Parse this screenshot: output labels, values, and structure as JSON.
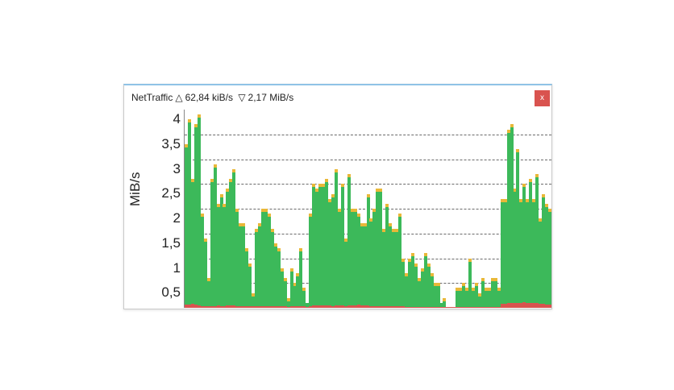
{
  "window": {
    "app_name": "NetTraffic",
    "upload_icon": "△",
    "upload_rate": "62,84 kiB/s",
    "download_icon": "▽",
    "download_rate": "2,17 MiB/s",
    "close_label": "x"
  },
  "chart_data": {
    "type": "bar",
    "title": "NetTraffic △ 62,84 kiB/s ▽ 2,17 MiB/s",
    "xlabel": "",
    "ylabel": "MiB/s",
    "ylim": [
      0,
      4
    ],
    "yticks": [
      "4",
      "3,5",
      "3",
      "2,5",
      "2",
      "1,5",
      "1",
      "0,5"
    ],
    "grid": true,
    "legend": "none",
    "colors": {
      "download": "#3cb95a",
      "upload": "#d9534f",
      "peak_cap": "#e9b838",
      "grid": "#6a6a6a"
    },
    "series": [
      {
        "name": "download",
        "values": [
          3.3,
          3.8,
          2.6,
          3.7,
          3.9,
          1.9,
          1.4,
          0.6,
          2.6,
          2.9,
          2.1,
          2.3,
          2.1,
          2.4,
          2.6,
          2.8,
          2.0,
          1.7,
          1.7,
          1.2,
          0.9,
          0.3,
          1.6,
          1.7,
          2.0,
          2.0,
          1.9,
          1.6,
          1.3,
          1.2,
          0.8,
          0.6,
          0.2,
          0.8,
          0.5,
          0.7,
          1.2,
          0.4,
          0.1,
          1.9,
          2.5,
          2.4,
          2.5,
          2.5,
          2.6,
          2.2,
          2.3,
          2.8,
          2.0,
          2.5,
          1.4,
          2.7,
          2.0,
          2.0,
          1.9,
          1.7,
          1.7,
          2.3,
          1.8,
          2.0,
          2.4,
          2.4,
          1.6,
          2.1,
          1.7,
          1.6,
          1.6,
          1.9,
          1.0,
          0.7,
          1.0,
          1.1,
          0.9,
          0.6,
          0.8,
          1.1,
          0.9,
          0.7,
          0.5,
          0.5,
          0.1,
          0.2,
          0.0,
          0.0,
          0.0,
          0.4,
          0.4,
          0.5,
          0.4,
          1.0,
          0.4,
          0.5,
          0.3,
          0.6,
          0.4,
          0.4,
          0.6,
          0.6,
          0.4,
          2.2,
          2.2,
          3.6,
          3.7,
          2.4,
          3.2,
          2.2,
          2.5,
          2.2,
          2.6,
          2.2,
          2.7,
          1.8,
          2.3,
          2.1,
          2.0
        ]
      },
      {
        "name": "upload",
        "values": [
          0.06,
          0.07,
          0.08,
          0.06,
          0.05,
          0.04,
          0.03,
          0.03,
          0.04,
          0.04,
          0.05,
          0.04,
          0.04,
          0.05,
          0.05,
          0.05,
          0.04,
          0.04,
          0.04,
          0.03,
          0.03,
          0.03,
          0.03,
          0.04,
          0.04,
          0.04,
          0.03,
          0.03,
          0.03,
          0.03,
          0.03,
          0.03,
          0.02,
          0.03,
          0.03,
          0.03,
          0.03,
          0.03,
          0.02,
          0.04,
          0.05,
          0.05,
          0.05,
          0.05,
          0.05,
          0.05,
          0.04,
          0.05,
          0.05,
          0.05,
          0.04,
          0.05,
          0.05,
          0.05,
          0.06,
          0.05,
          0.05,
          0.05,
          0.04,
          0.04,
          0.04,
          0.04,
          0.03,
          0.03,
          0.03,
          0.03,
          0.03,
          0.03,
          0.03,
          0.02,
          0.02,
          0.02,
          0.02,
          0.02,
          0.02,
          0.02,
          0.02,
          0.02,
          0.02,
          0.02,
          0.02,
          0.02,
          0.02,
          0.02,
          0.02,
          0.02,
          0.02,
          0.02,
          0.02,
          0.02,
          0.02,
          0.02,
          0.02,
          0.02,
          0.02,
          0.02,
          0.02,
          0.02,
          0.02,
          0.08,
          0.08,
          0.09,
          0.1,
          0.1,
          0.09,
          0.1,
          0.11,
          0.1,
          0.1,
          0.09,
          0.09,
          0.08,
          0.08,
          0.07,
          0.06
        ]
      }
    ]
  }
}
